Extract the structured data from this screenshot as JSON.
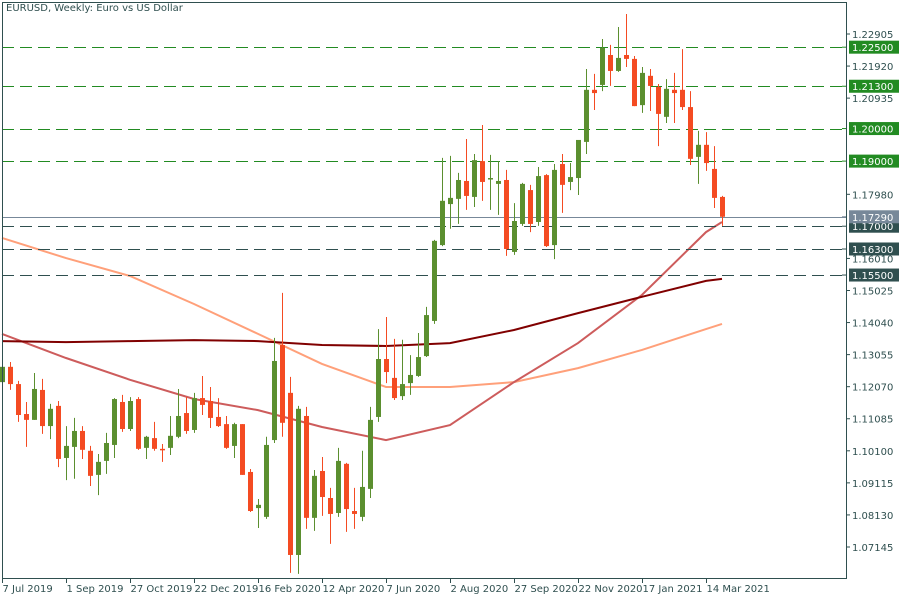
{
  "header": {
    "title": "EURUSD, Weekly:  Euro vs US Dollar"
  },
  "colors": {
    "frame": "#2f4f4f",
    "bull": "#5b8f2f",
    "bear": "#f44b22",
    "level_upper": "#228b22",
    "level_lower": "#2f4f4f",
    "current_price": "#778899",
    "label_text": "#ffffff",
    "axis_text": "#2f4f4f"
  },
  "chart_data": {
    "type": "candlestick",
    "title": "EURUSD, Weekly:  Euro vs US Dollar",
    "xlabel": "",
    "ylabel": "",
    "ylim": [
      1.063,
      1.2395
    ],
    "grid": false,
    "y_axis_position": "right",
    "y_ticks": [
      "1.22905",
      "1.21920",
      "1.20935",
      "1.17980",
      "1.16010",
      "1.15025",
      "1.14040",
      "1.13055",
      "1.12070",
      "1.11085",
      "1.10100",
      "1.09115",
      "1.08130",
      "1.07145"
    ],
    "x_ticks": [
      {
        "date": "2019-07-07",
        "label": "7 Jul 2019"
      },
      {
        "date": "2019-09-01",
        "label": "1 Sep 2019"
      },
      {
        "date": "2019-10-27",
        "label": "27 Oct 2019"
      },
      {
        "date": "2019-12-22",
        "label": "22 Dec 2019"
      },
      {
        "date": "2020-02-16",
        "label": "16 Feb 2020"
      },
      {
        "date": "2020-04-12",
        "label": "12 Apr 2020"
      },
      {
        "date": "2020-06-07",
        "label": "7 Jun 2020"
      },
      {
        "date": "2020-08-02",
        "label": "2 Aug 2020"
      },
      {
        "date": "2020-09-27",
        "label": "27 Sep 2020"
      },
      {
        "date": "2020-11-22",
        "label": "22 Nov 2020"
      },
      {
        "date": "2021-01-17",
        "label": "17 Jan 2021"
      },
      {
        "date": "2021-03-14",
        "label": "14 Mar 2021"
      }
    ],
    "candles_format": [
      "date",
      "open",
      "high",
      "low",
      "close"
    ],
    "candles": [
      [
        "2019-07-07",
        1.1221,
        1.1274,
        1.1215,
        1.1268
      ],
      [
        "2019-07-14",
        1.1268,
        1.1283,
        1.1197,
        1.1215
      ],
      [
        "2019-07-21",
        1.1215,
        1.1225,
        1.1099,
        1.112
      ],
      [
        "2019-07-28",
        1.1123,
        1.116,
        1.1022,
        1.1105
      ],
      [
        "2019-08-04",
        1.1105,
        1.1249,
        1.1105,
        1.12
      ],
      [
        "2019-08-11",
        1.1197,
        1.1231,
        1.1062,
        1.1086
      ],
      [
        "2019-08-18",
        1.1086,
        1.1154,
        1.1046,
        1.1139
      ],
      [
        "2019-08-25",
        1.1148,
        1.1163,
        1.096,
        1.0985
      ],
      [
        "2019-09-01",
        1.0988,
        1.1086,
        1.092,
        1.1025
      ],
      [
        "2019-09-08",
        1.1022,
        1.1111,
        1.0924,
        1.1071
      ],
      [
        "2019-09-15",
        1.1071,
        1.1086,
        1.0985,
        1.1013
      ],
      [
        "2019-09-22",
        1.101,
        1.1025,
        1.0902,
        1.0933
      ],
      [
        "2019-09-29",
        1.0936,
        1.1,
        1.0874,
        1.0976
      ],
      [
        "2019-10-06",
        1.0979,
        1.1065,
        1.0939,
        1.1034
      ],
      [
        "2019-10-13",
        1.1028,
        1.1172,
        1.0988,
        1.1169
      ],
      [
        "2019-10-20",
        1.116,
        1.1182,
        1.1068,
        1.1077
      ],
      [
        "2019-10-27",
        1.1077,
        1.1175,
        1.1071,
        1.1163
      ],
      [
        "2019-11-03",
        1.1169,
        1.1175,
        1.1013,
        1.1016
      ],
      [
        "2019-11-10",
        1.1019,
        1.1056,
        1.0985,
        1.1053
      ],
      [
        "2019-11-17",
        1.1049,
        1.1099,
        1.101,
        1.1016
      ],
      [
        "2019-11-24",
        1.1016,
        1.1031,
        1.0976,
        1.1013
      ],
      [
        "2019-12-01",
        1.1019,
        1.1117,
        1.0997,
        1.1056
      ],
      [
        "2019-12-08",
        1.1053,
        1.12,
        1.1049,
        1.1117
      ],
      [
        "2019-12-15",
        1.1126,
        1.1175,
        1.1062,
        1.1071
      ],
      [
        "2019-12-22",
        1.1074,
        1.1188,
        1.1065,
        1.1172
      ],
      [
        "2019-12-29",
        1.1172,
        1.124,
        1.112,
        1.1151
      ],
      [
        "2020-01-05",
        1.1163,
        1.1206,
        1.108,
        1.1111
      ],
      [
        "2020-01-12",
        1.1114,
        1.1172,
        1.1083,
        1.1086
      ],
      [
        "2020-01-19",
        1.1092,
        1.1117,
        1.1016,
        1.1019
      ],
      [
        "2020-01-26",
        1.1025,
        1.1096,
        1.0988,
        1.1092
      ],
      [
        "2020-02-02",
        1.1092,
        1.1092,
        1.0936,
        1.0936
      ],
      [
        "2020-02-09",
        1.0945,
        1.0954,
        1.0822,
        1.0825
      ],
      [
        "2020-02-16",
        1.0834,
        1.0862,
        1.0773,
        1.0844
      ],
      [
        "2020-02-23",
        1.0807,
        1.1053,
        1.0801,
        1.1028
      ],
      [
        "2020-03-01",
        1.1043,
        1.1357,
        1.1034,
        1.1286
      ],
      [
        "2020-03-08",
        1.1335,
        1.1495,
        1.1053,
        1.1096
      ],
      [
        "2020-03-15",
        1.1188,
        1.1237,
        1.0635,
        1.069
      ],
      [
        "2020-03-22",
        1.069,
        1.1148,
        1.0632,
        1.1139
      ],
      [
        "2020-03-29",
        1.1117,
        1.1145,
        1.077,
        1.0804
      ],
      [
        "2020-04-05",
        1.0804,
        1.0951,
        1.0764,
        1.0933
      ],
      [
        "2020-04-12",
        1.0948,
        1.0991,
        1.081,
        1.0868
      ],
      [
        "2020-04-19",
        1.0865,
        1.0896,
        1.0724,
        1.0816
      ],
      [
        "2020-04-26",
        1.0819,
        1.1019,
        1.0807,
        1.0979
      ],
      [
        "2020-05-03",
        1.097,
        1.0973,
        1.0761,
        1.0831
      ],
      [
        "2020-05-10",
        1.0825,
        1.0896,
        1.077,
        1.0816
      ],
      [
        "2020-05-17",
        1.0807,
        1.101,
        1.0794,
        1.0899
      ],
      [
        "2020-05-24",
        1.0893,
        1.1145,
        1.0865,
        1.1105
      ],
      [
        "2020-05-31",
        1.1114,
        1.1384,
        1.1099,
        1.1292
      ],
      [
        "2020-06-07",
        1.1292,
        1.1421,
        1.1218,
        1.1252
      ],
      [
        "2020-06-14",
        1.1234,
        1.1354,
        1.1166,
        1.1172
      ],
      [
        "2020-06-21",
        1.1178,
        1.1351,
        1.1166,
        1.1215
      ],
      [
        "2020-06-28",
        1.1218,
        1.1304,
        1.1182,
        1.1243
      ],
      [
        "2020-07-05",
        1.124,
        1.1372,
        1.1237,
        1.1298
      ],
      [
        "2020-07-12",
        1.1301,
        1.1452,
        1.1298,
        1.1427
      ],
      [
        "2020-07-19",
        1.1409,
        1.1658,
        1.14,
        1.1655
      ],
      [
        "2020-07-26",
        1.1642,
        1.191,
        1.1639,
        1.1778
      ],
      [
        "2020-08-02",
        1.1768,
        1.1916,
        1.1692,
        1.1787
      ],
      [
        "2020-08-09",
        1.1784,
        1.1864,
        1.1707,
        1.1842
      ],
      [
        "2020-08-16",
        1.1839,
        1.1968,
        1.175,
        1.1793
      ],
      [
        "2020-08-23",
        1.179,
        1.1922,
        1.1759,
        1.1903
      ],
      [
        "2020-08-30",
        1.19,
        1.2011,
        1.1778,
        1.1836
      ],
      [
        "2020-09-06",
        1.1845,
        1.1919,
        1.175,
        1.1848
      ],
      [
        "2020-09-13",
        1.183,
        1.19,
        1.1735,
        1.1839
      ],
      [
        "2020-09-20",
        1.1842,
        1.1873,
        1.1609,
        1.163
      ],
      [
        "2020-09-27",
        1.1621,
        1.1771,
        1.1612,
        1.1716
      ],
      [
        "2020-10-04",
        1.1707,
        1.1833,
        1.1701,
        1.183
      ],
      [
        "2020-10-11",
        1.1811,
        1.1827,
        1.1682,
        1.1707
      ],
      [
        "2020-10-18",
        1.1713,
        1.1882,
        1.1701,
        1.1854
      ],
      [
        "2020-10-25",
        1.1857,
        1.186,
        1.1636,
        1.1639
      ],
      [
        "2020-11-01",
        1.1642,
        1.1891,
        1.1599,
        1.1873
      ],
      [
        "2020-11-08",
        1.1891,
        1.1922,
        1.1741,
        1.1827
      ],
      [
        "2020-11-15",
        1.1836,
        1.1894,
        1.1811,
        1.1851
      ],
      [
        "2020-11-22",
        1.1848,
        1.1965,
        1.1796,
        1.1965
      ],
      [
        "2020-11-29",
        1.1959,
        1.2183,
        1.1922,
        1.2119
      ],
      [
        "2020-12-06",
        1.2119,
        1.2168,
        1.2057,
        1.2109
      ],
      [
        "2020-12-13",
        1.2134,
        1.2275,
        1.2115,
        1.2248
      ],
      [
        "2020-12-20",
        1.2226,
        1.2257,
        1.2131,
        1.2177
      ],
      [
        "2020-12-27",
        1.2177,
        1.2312,
        1.2174,
        1.2217
      ],
      [
        "2021-01-03",
        1.2226,
        1.2352,
        1.2189,
        1.2214
      ],
      [
        "2021-01-10",
        1.2214,
        1.2223,
        1.2069,
        1.2069
      ],
      [
        "2021-01-17",
        1.2072,
        1.2189,
        1.2048,
        1.2171
      ],
      [
        "2021-01-24",
        1.2162,
        1.2183,
        1.2054,
        1.2131
      ],
      [
        "2021-01-31",
        1.2128,
        1.2137,
        1.1946,
        1.2045
      ],
      [
        "2021-02-07",
        1.2036,
        1.2152,
        1.2017,
        1.2122
      ],
      [
        "2021-02-14",
        1.2119,
        1.2171,
        1.2017,
        1.2109
      ],
      [
        "2021-02-21",
        1.2119,
        1.2244,
        1.2057,
        1.2066
      ],
      [
        "2021-02-28",
        1.2066,
        1.2115,
        1.1888,
        1.1907
      ],
      [
        "2021-03-07",
        1.1913,
        1.1993,
        1.183,
        1.195
      ],
      [
        "2021-03-14",
        1.195,
        1.1989,
        1.187,
        1.1894
      ],
      [
        "2021-03-21",
        1.1876,
        1.1946,
        1.1756,
        1.1787
      ],
      [
        "2021-03-28",
        1.179,
        1.1793,
        1.1701,
        1.1729
      ]
    ],
    "overlays": [
      {
        "color": "#ffa07a",
        "points": [
          [
            "2019-07-07",
            1.1664
          ],
          [
            "2019-09-01",
            1.1602
          ],
          [
            "2019-10-27",
            1.1547
          ],
          [
            "2019-12-22",
            1.1461
          ],
          [
            "2020-02-16",
            1.1369
          ],
          [
            "2020-04-12",
            1.1277
          ],
          [
            "2020-06-07",
            1.1206
          ],
          [
            "2020-08-02",
            1.1206
          ],
          [
            "2020-09-27",
            1.1221
          ],
          [
            "2020-11-22",
            1.1264
          ],
          [
            "2021-01-17",
            1.132
          ],
          [
            "2021-03-14",
            1.1384
          ],
          [
            "2021-03-28",
            1.14
          ]
        ]
      },
      {
        "color": "#cd5c5c",
        "points": [
          [
            "2019-07-07",
            1.1369
          ],
          [
            "2019-09-01",
            1.1295
          ],
          [
            "2019-10-27",
            1.1228
          ],
          [
            "2019-12-22",
            1.1169
          ],
          [
            "2020-02-16",
            1.1135
          ],
          [
            "2020-04-12",
            1.1083
          ],
          [
            "2020-06-07",
            1.1043
          ],
          [
            "2020-08-02",
            1.1089
          ],
          [
            "2020-09-27",
            1.1221
          ],
          [
            "2020-11-22",
            1.1341
          ],
          [
            "2021-01-17",
            1.1489
          ],
          [
            "2021-03-14",
            1.1682
          ],
          [
            "2021-03-28",
            1.1713
          ]
        ]
      },
      {
        "color": "#800000",
        "points": [
          [
            "2019-07-07",
            1.1347
          ],
          [
            "2019-09-01",
            1.1344
          ],
          [
            "2019-10-27",
            1.1347
          ],
          [
            "2019-12-22",
            1.135
          ],
          [
            "2020-02-16",
            1.1347
          ],
          [
            "2020-04-12",
            1.1335
          ],
          [
            "2020-06-07",
            1.1332
          ],
          [
            "2020-08-02",
            1.1341
          ],
          [
            "2020-09-27",
            1.1381
          ],
          [
            "2020-11-22",
            1.1433
          ],
          [
            "2021-01-17",
            1.1483
          ],
          [
            "2021-03-14",
            1.1532
          ],
          [
            "2021-03-28",
            1.1538
          ]
        ]
      }
    ],
    "levels": [
      {
        "label": "1.22500",
        "value": 1.225,
        "kind": "upper"
      },
      {
        "label": "1.21300",
        "value": 1.213,
        "kind": "upper"
      },
      {
        "label": "1.20000",
        "value": 1.2,
        "kind": "upper"
      },
      {
        "label": "1.19000",
        "value": 1.19,
        "kind": "upper"
      },
      {
        "label": "1.17000",
        "value": 1.17,
        "kind": "lower"
      },
      {
        "label": "1.16300",
        "value": 1.163,
        "kind": "lower"
      },
      {
        "label": "1.15500",
        "value": 1.155,
        "kind": "lower"
      }
    ],
    "current_price": {
      "label": "1.17290",
      "value": 1.1729
    }
  }
}
